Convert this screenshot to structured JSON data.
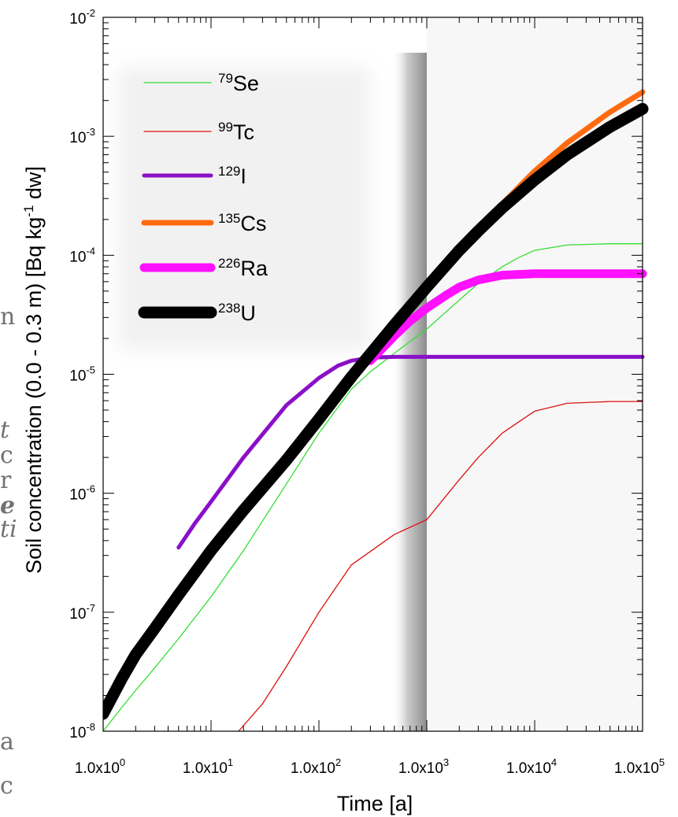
{
  "chart_data": {
    "type": "line",
    "title": "",
    "xlabel": "Time [a]",
    "ylabel": "Soil concentration (0.0 - 0.3 m) [Bq kg-1 dw]",
    "ylabel_parts": {
      "pre": "Soil concentration (0.0 - 0.3 m) [Bq kg",
      "sup": "-1",
      "post": " dw]"
    },
    "x_scale": "log",
    "y_scale": "log",
    "xlim": [
      1,
      100000
    ],
    "ylim": [
      1e-08,
      0.01
    ],
    "x_ticks": [
      {
        "value": 1,
        "base": "1.0x10",
        "exp": "0"
      },
      {
        "value": 10,
        "base": "1.0x10",
        "exp": "1"
      },
      {
        "value": 100,
        "base": "1.0x10",
        "exp": "2"
      },
      {
        "value": 1000,
        "base": "1.0x10",
        "exp": "3"
      },
      {
        "value": 10000,
        "base": "1.0x10",
        "exp": "4"
      },
      {
        "value": 100000,
        "base": "1.0x10",
        "exp": "5"
      }
    ],
    "y_ticks": [
      {
        "value": 1e-08,
        "base": "10",
        "exp": "-8"
      },
      {
        "value": 1e-07,
        "base": "10",
        "exp": "-7"
      },
      {
        "value": 1e-06,
        "base": "10",
        "exp": "-6"
      },
      {
        "value": 1e-05,
        "base": "10",
        "exp": "-5"
      },
      {
        "value": 0.0001,
        "base": "10",
        "exp": "-4"
      },
      {
        "value": 0.001,
        "base": "10",
        "exp": "-3"
      },
      {
        "value": 0.01,
        "base": "10",
        "exp": "-2"
      }
    ],
    "shaded_region": {
      "x_from": 1000,
      "x_to": 100000,
      "color": "#f7f7f7"
    },
    "legend_position": "top-left",
    "series": [
      {
        "name_sup": "79",
        "name_text": "Se",
        "color": "#33dd33",
        "line": "thin",
        "points": [
          [
            1.0,
            1e-08
          ],
          [
            1.5,
            1.6e-08
          ],
          [
            2,
            2.2e-08
          ],
          [
            3,
            3.4e-08
          ],
          [
            5,
            6e-08
          ],
          [
            10,
            1.35e-07
          ],
          [
            20,
            3.3e-07
          ],
          [
            50,
            1.2e-06
          ],
          [
            100,
            3.2e-06
          ],
          [
            200,
            7.5e-06
          ],
          [
            300,
            1.05e-05
          ],
          [
            500,
            1.5e-05
          ],
          [
            1000,
            2.4e-05
          ],
          [
            2000,
            4.2e-05
          ],
          [
            3000,
            5.8e-05
          ],
          [
            5000,
            8e-05
          ],
          [
            7000,
            9.5e-05
          ],
          [
            10000,
            0.00011
          ],
          [
            20000,
            0.000122
          ],
          [
            50000,
            0.000125
          ],
          [
            100000,
            0.000125
          ]
        ]
      },
      {
        "name_sup": "99",
        "name_text": "Tc",
        "color": "#dd1111",
        "line": "thin",
        "points": [
          [
            18,
            1e-08
          ],
          [
            30,
            1.7e-08
          ],
          [
            50,
            3.5e-08
          ],
          [
            100,
            1e-07
          ],
          [
            200,
            2.5e-07
          ],
          [
            500,
            4.5e-07
          ],
          [
            1000,
            6e-07
          ],
          [
            2000,
            1.3e-06
          ],
          [
            3000,
            2e-06
          ],
          [
            5000,
            3.2e-06
          ],
          [
            10000,
            4.9e-06
          ],
          [
            20000,
            5.7e-06
          ],
          [
            50000,
            5.9e-06
          ],
          [
            100000,
            5.9e-06
          ]
        ]
      },
      {
        "name_sup": "129",
        "name_text": "I",
        "color": "#8a10c8",
        "line": "medium",
        "points": [
          [
            5,
            3.5e-07
          ],
          [
            7,
            5.5e-07
          ],
          [
            10,
            8.5e-07
          ],
          [
            20,
            2e-06
          ],
          [
            50,
            5.5e-06
          ],
          [
            100,
            9.3e-06
          ],
          [
            150,
            1.18e-05
          ],
          [
            200,
            1.3e-05
          ],
          [
            300,
            1.38e-05
          ],
          [
            500,
            1.4e-05
          ],
          [
            1000,
            1.4e-05
          ],
          [
            10000,
            1.4e-05
          ],
          [
            100000,
            1.4e-05
          ]
        ]
      },
      {
        "name_sup": "135",
        "name_text": "Cs",
        "color": "#ff6a10",
        "line": "thick",
        "points": [
          [
            1,
            1.4e-08
          ],
          [
            1.5,
            2.8e-08
          ],
          [
            2,
            4.4e-08
          ],
          [
            3,
            7.3e-08
          ],
          [
            5,
            1.4e-07
          ],
          [
            10,
            3.3e-07
          ],
          [
            20,
            7.2e-07
          ],
          [
            50,
            1.9e-06
          ],
          [
            100,
            4.2e-06
          ],
          [
            200,
            9.5e-06
          ],
          [
            500,
            2.6e-05
          ],
          [
            1000,
            5.4e-05
          ],
          [
            2000,
            0.00011
          ],
          [
            3000,
            0.00016
          ],
          [
            5000,
            0.00027
          ],
          [
            10000,
            0.00051
          ],
          [
            20000,
            0.00088
          ],
          [
            50000,
            0.0016
          ],
          [
            100000,
            0.00235
          ]
        ]
      },
      {
        "name_sup": "226",
        "name_text": "Ra",
        "color": "#ff10ff",
        "line": "thicker",
        "points": [
          [
            300,
            1.3e-05
          ],
          [
            500,
            2.1e-05
          ],
          [
            700,
            2.8e-05
          ],
          [
            1000,
            3.6e-05
          ],
          [
            1500,
            4.6e-05
          ],
          [
            2000,
            5.4e-05
          ],
          [
            3000,
            6.2e-05
          ],
          [
            5000,
            6.8e-05
          ],
          [
            10000,
            7e-05
          ],
          [
            30000,
            7e-05
          ],
          [
            100000,
            7e-05
          ]
        ]
      },
      {
        "name_sup": "238",
        "name_text": "U",
        "color": "#000000",
        "line": "thickest",
        "points": [
          [
            1,
            1.4e-08
          ],
          [
            1.5,
            2.8e-08
          ],
          [
            2,
            4.4e-08
          ],
          [
            3,
            7.3e-08
          ],
          [
            5,
            1.4e-07
          ],
          [
            10,
            3.3e-07
          ],
          [
            20,
            7.2e-07
          ],
          [
            50,
            1.9e-06
          ],
          [
            100,
            4.2e-06
          ],
          [
            200,
            9.5e-06
          ],
          [
            500,
            2.6e-05
          ],
          [
            1000,
            5.4e-05
          ],
          [
            2000,
            0.00011
          ],
          [
            3000,
            0.00016
          ],
          [
            5000,
            0.00025
          ],
          [
            10000,
            0.00043
          ],
          [
            20000,
            0.0007
          ],
          [
            50000,
            0.0012
          ],
          [
            100000,
            0.0017
          ]
        ]
      }
    ]
  },
  "background_fragments": [
    "n",
    "t",
    "c",
    "r",
    "e",
    "ti",
    "a",
    "c"
  ],
  "colors": {
    "shade": "#f7f7f7",
    "shadow": "#777777",
    "axis": "#000000"
  }
}
